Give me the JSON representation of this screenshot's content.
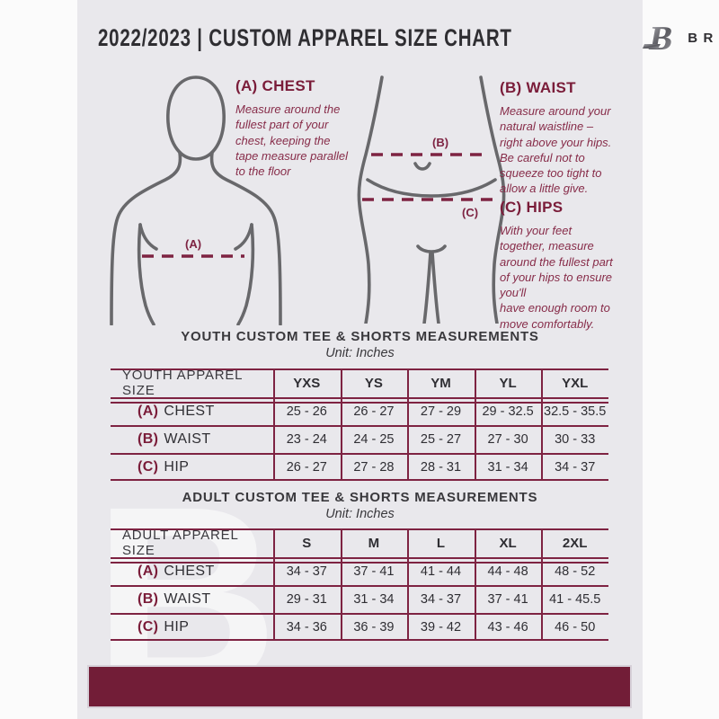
{
  "header": {
    "title": "2022/2023  |  CUSTOM APPAREL SIZE CHART",
    "brand": "BREAKAWAY",
    "logo_letter": "B"
  },
  "colors": {
    "page_bg": "#e9e8ec",
    "maroon_accent": "#7e2342",
    "maroon_heading": "#7a1c39",
    "bar": "#721d37",
    "silhouette_gray": "#68686b",
    "dark_text": "#2f2e32"
  },
  "guide": {
    "chest": {
      "heading": "(A) CHEST",
      "body": "Measure around the\nfullest part of your\nchest, keeping the\ntape measure parallel\nto the floor"
    },
    "waist": {
      "heading": "(B) WAIST",
      "body": "Measure around your\nnatural waistline –\nright above your hips.\nBe careful not to\nsqueeze too tight to\nallow a little give."
    },
    "hips": {
      "heading": "(C) HIPS",
      "body": "With your feet\ntogether, measure\naround the fullest part\nof your hips to ensure\nyou'll\nhave enough room to\nmove comfortably."
    },
    "fig_labels": {
      "chest": "(A)",
      "waist": "(B)",
      "hips": "(C)"
    }
  },
  "tables": [
    {
      "title": "YOUTH CUSTOM TEE & SHORTS MEASUREMENTS",
      "unit": "Unit: Inches",
      "size_header": "YOUTH APPAREL SIZE",
      "columns": [
        "YXS",
        "YS",
        "YM",
        "YL",
        "YXL"
      ],
      "rows": [
        {
          "prefix": "(A)",
          "label": "CHEST",
          "values": [
            "25 - 26",
            "26 - 27",
            "27 - 29",
            "29 - 32.5",
            "32.5 - 35.5"
          ]
        },
        {
          "prefix": "(B)",
          "label": "WAIST",
          "values": [
            "23 - 24",
            "24 - 25",
            "25 - 27",
            "27 - 30",
            "30 - 33"
          ]
        },
        {
          "prefix": "(C)",
          "label": "HIP",
          "values": [
            "26 - 27",
            "27 - 28",
            "28 - 31",
            "31 - 34",
            "34 - 37"
          ]
        }
      ]
    },
    {
      "title": "ADULT CUSTOM TEE & SHORTS MEASUREMENTS",
      "unit": "Unit: Inches",
      "size_header": "ADULT APPAREL SIZE",
      "columns": [
        "S",
        "M",
        "L",
        "XL",
        "2XL"
      ],
      "rows": [
        {
          "prefix": "(A)",
          "label": "CHEST",
          "values": [
            "34 - 37",
            "37 - 41",
            "41 - 44",
            "44 - 48",
            "48 - 52"
          ]
        },
        {
          "prefix": "(B)",
          "label": "WAIST",
          "values": [
            "29 - 31",
            "31 - 34",
            "34 - 37",
            "37 - 41",
            "41 - 45.5"
          ]
        },
        {
          "prefix": "(C)",
          "label": "HIP",
          "values": [
            "34 - 36",
            "36 - 39",
            "39 - 42",
            "43 - 46",
            "46 - 50"
          ]
        }
      ]
    }
  ],
  "watermark": "B"
}
